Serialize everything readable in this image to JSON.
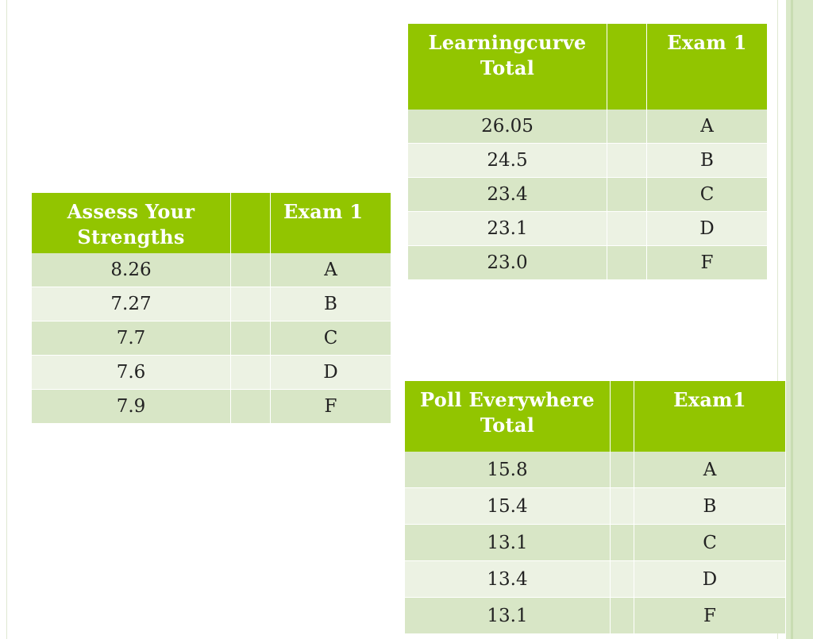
{
  "tables": {
    "learningcurve": {
      "headers": [
        "Learningcurve Total",
        "",
        "Exam 1"
      ],
      "rows": [
        {
          "score": "26.05",
          "grade": "A"
        },
        {
          "score": "24.5",
          "grade": "B"
        },
        {
          "score": "23.4",
          "grade": "C"
        },
        {
          "score": "23.1",
          "grade": "D"
        },
        {
          "score": "23.0",
          "grade": "F"
        }
      ]
    },
    "assess": {
      "headers": [
        "Assess Your Strengths",
        "",
        "Exam 1"
      ],
      "rows": [
        {
          "score": "8.26",
          "grade": "A"
        },
        {
          "score": "7.27",
          "grade": "B"
        },
        {
          "score": "7.7",
          "grade": "C"
        },
        {
          "score": "7.6",
          "grade": "D"
        },
        {
          "score": "7.9",
          "grade": "F"
        }
      ]
    },
    "poll": {
      "headers": [
        "Poll Everywhere Total",
        "",
        "Exam1"
      ],
      "rows": [
        {
          "score": "15.8",
          "grade": "A"
        },
        {
          "score": "15.4",
          "grade": "B"
        },
        {
          "score": "13.1",
          "grade": "C"
        },
        {
          "score": "13.4",
          "grade": "D"
        },
        {
          "score": "13.1",
          "grade": "F"
        }
      ]
    }
  },
  "colors": {
    "header_green": "#92c500",
    "row_dark": "#d8e6c6",
    "row_light": "#ecf2e3",
    "side_band": "#d9e8c8"
  }
}
